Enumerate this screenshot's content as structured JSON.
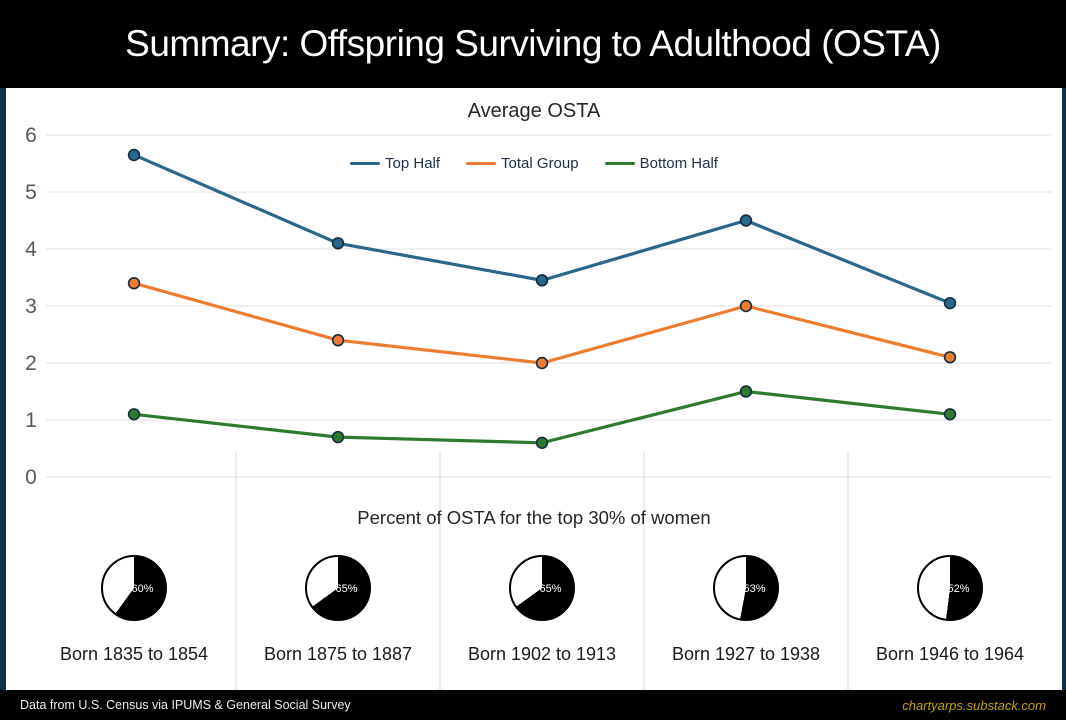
{
  "header": {
    "title": "Summary: Offspring Surviving to Adulthood (OSTA)"
  },
  "chart_data": {
    "type": "line",
    "title": "Average OSTA",
    "categories": [
      "Born 1835 to 1854",
      "Born 1875 to 1887",
      "Born 1902 to 1913",
      "Born 1927 to 1938",
      "Born 1946 to 1964"
    ],
    "series": [
      {
        "name": "Top Half",
        "color": "#2a678a",
        "values": [
          5.65,
          4.1,
          3.45,
          4.5,
          3.05
        ]
      },
      {
        "name": "Total Group",
        "color": "#ed7c31",
        "values": [
          3.4,
          2.4,
          2.0,
          3.0,
          2.1
        ]
      },
      {
        "name": "Bottom Half",
        "color": "#2e7b2e",
        "values": [
          1.1,
          0.7,
          0.6,
          1.5,
          1.1
        ]
      }
    ],
    "ylim": [
      0,
      6
    ],
    "yticks": [
      0,
      1,
      2,
      3,
      4,
      5,
      6
    ],
    "grid": true,
    "legend_position": "top-center"
  },
  "pie_section": {
    "title": "Percent of OSTA for the top 30% of women",
    "pies": [
      {
        "label": "60%",
        "value": 60
      },
      {
        "label": "65%",
        "value": 65
      },
      {
        "label": "65%",
        "value": 65
      },
      {
        "label": "53%",
        "value": 53
      },
      {
        "label": "52%",
        "value": 52
      }
    ]
  },
  "footer": {
    "source": "Data from U.S. Census via IPUMS & General Social Survey",
    "site": "chartyarps.substack.com"
  },
  "colors": {
    "marker_outline": "#122c3f",
    "gridline": "#e2e2e2",
    "divider": "#d9d9d9",
    "side_border": "#0c3144",
    "tick_text": "#595959",
    "footer_link": "#c2a008",
    "pie_fill": "#000000",
    "pie_rest": "#ffffff"
  }
}
